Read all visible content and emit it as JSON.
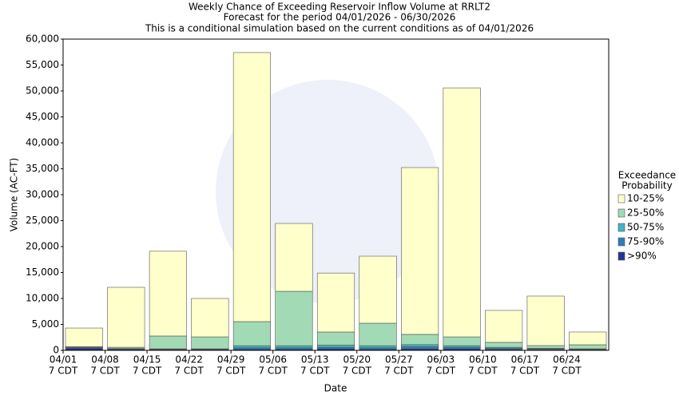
{
  "chart_data": {
    "type": "stacked_bar",
    "title": "Weekly Chance of Exceeding Reservoir Inflow Volume at RRLT2",
    "subtitle": "Forecast for the period 04/01/2026 - 06/30/2026",
    "note": "This is a conditional simulation based on the current conditions as of 04/01/2026",
    "x_label": "Date",
    "y_label": "Volume (AC-FT)",
    "categories": [
      "04/01",
      "04/08",
      "04/15",
      "04/22",
      "04/29",
      "05/06",
      "05/13",
      "05/20",
      "05/27",
      "06/03",
      "06/10",
      "06/17",
      "06/24"
    ],
    "tick_time_label": "7 CDT",
    "legend_title": [
      "Exceedance",
      "Probability"
    ],
    "legend_position": "right",
    "series": [
      {
        "name": ">90%",
        "color": "#253494",
        "values": [
          400,
          200,
          150,
          150,
          200,
          200,
          300,
          200,
          300,
          300,
          200,
          150,
          100
        ]
      },
      {
        "name": "75-90%",
        "color": "#2c7fb8",
        "values": [
          150,
          100,
          100,
          100,
          300,
          300,
          300,
          300,
          400,
          300,
          200,
          150,
          100
        ]
      },
      {
        "name": "50-75%",
        "color": "#41b6c4",
        "values": [
          50,
          50,
          50,
          50,
          400,
          400,
          400,
          400,
          400,
          300,
          200,
          100,
          100
        ]
      },
      {
        "name": "25-50%",
        "color": "#a1dab4",
        "values": [
          100,
          250,
          2470,
          2300,
          4640,
          10480,
          2540,
          4330,
          1980,
          1700,
          940,
          520,
          780
        ]
      },
      {
        "name": "10-25%",
        "color": "#ffffcc",
        "values": [
          3600,
          11550,
          16330,
          7400,
          51860,
          13080,
          11360,
          12920,
          32150,
          48000,
          6160,
          9540,
          2460
        ]
      }
    ],
    "ylim": [
      0,
      60000
    ],
    "yticks": [
      0,
      {
        "value": 5000,
        "label": "5,000"
      },
      {
        "value": 10000,
        "label": "10,000"
      },
      {
        "value": 15000,
        "label": "15,000"
      },
      {
        "value": 20000,
        "label": "20,000"
      },
      {
        "value": 25000,
        "label": "25,000"
      },
      {
        "value": 30000,
        "label": "30,000"
      },
      {
        "value": 35000,
        "label": "35,000"
      },
      {
        "value": 40000,
        "label": "40,000"
      },
      {
        "value": 45000,
        "label": "45,000"
      },
      {
        "value": 50000,
        "label": "50,000"
      },
      {
        "value": 55000,
        "label": "55,000"
      },
      {
        "value": 60000,
        "label": "60,000"
      }
    ],
    "grid": false
  }
}
